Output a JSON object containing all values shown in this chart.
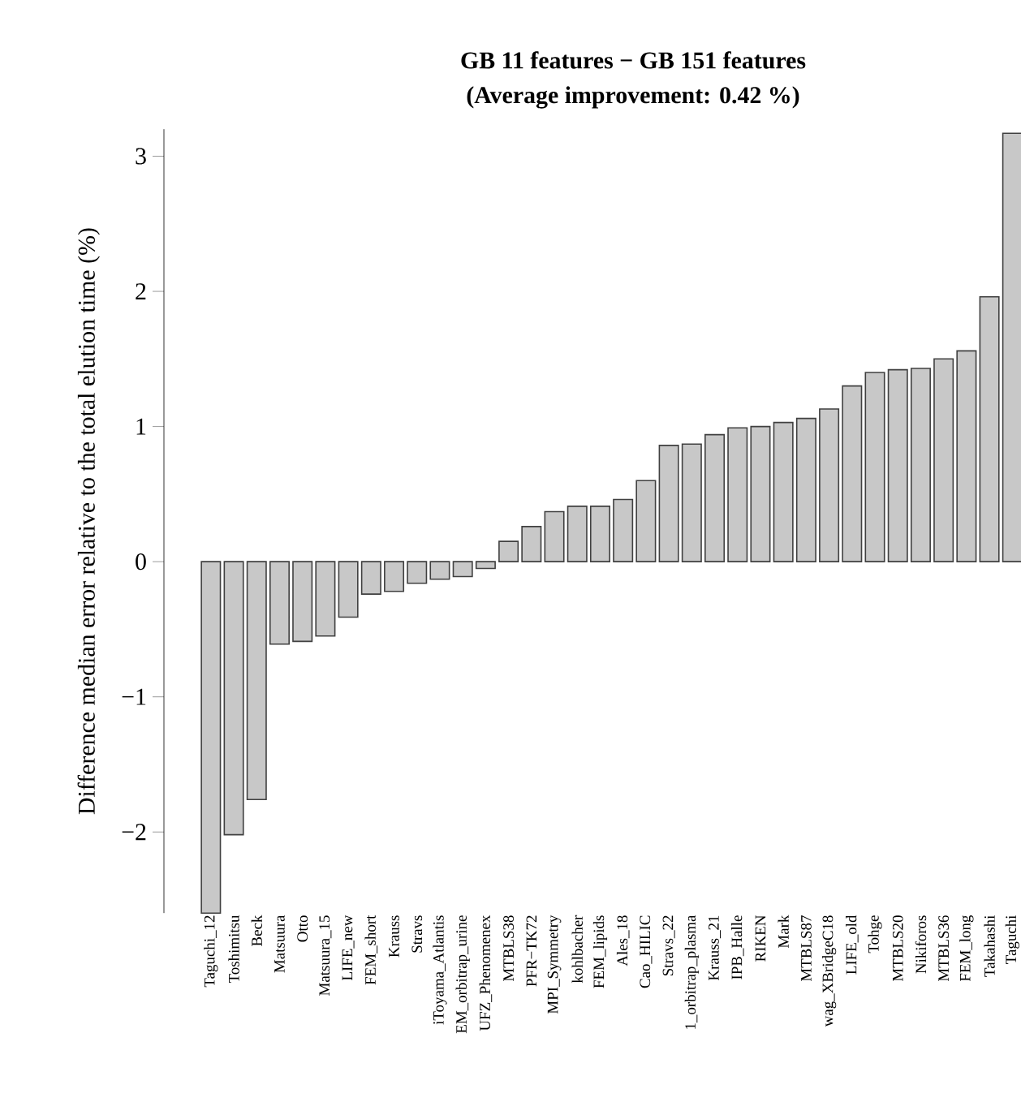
{
  "chart_data": {
    "type": "bar",
    "title": "GB 11 features − GB 151 features",
    "subtitle": "(Average improvement: 0.42 %)",
    "ylabel": "Difference median error relative to the total elution time (%)",
    "categories": [
      "Taguchi_12",
      "Toshimitsu",
      "Beck",
      "Matsuura",
      "Otto",
      "Matsuura_15",
      "LIFE_new",
      "FEM_short",
      "Krauss",
      "Stravs",
      "iToyama_Atlantis",
      "EM_orbitrap_urine",
      "UFZ_Phenomenex",
      "MTBLS38",
      "PFR−TK72",
      "MPI_Symmetry",
      "kohlbacher",
      "FEM_lipids",
      "Ales_18",
      "Cao_HILIC",
      "Stravs_22",
      "1_orbitrap_plasma",
      "Krauss_21",
      "IPB_Halle",
      "RIKEN",
      "Mark",
      "MTBLS87",
      "wag_XBridgeC18",
      "LIFE_old",
      "Tohge",
      "MTBLS20",
      "Nikiforos",
      "MTBLS36",
      "FEM_long",
      "Takahashi",
      "Taguchi"
    ],
    "values": [
      -2.6,
      -2.02,
      -1.76,
      -0.61,
      -0.59,
      -0.55,
      -0.41,
      -0.24,
      -0.22,
      -0.16,
      -0.13,
      -0.11,
      -0.05,
      0.15,
      0.26,
      0.37,
      0.41,
      0.41,
      0.46,
      0.6,
      0.86,
      0.87,
      0.94,
      0.99,
      1.0,
      1.03,
      1.06,
      1.13,
      1.3,
      1.4,
      1.42,
      1.43,
      1.5,
      1.56,
      1.96,
      3.17
    ],
    "color": "#c8c8c8",
    "ylim": [
      -2.6,
      3.2
    ],
    "yticks": [
      {
        "value": -2,
        "label": "−2"
      },
      {
        "value": -1,
        "label": "−1"
      },
      0,
      1,
      2,
      3
    ]
  }
}
